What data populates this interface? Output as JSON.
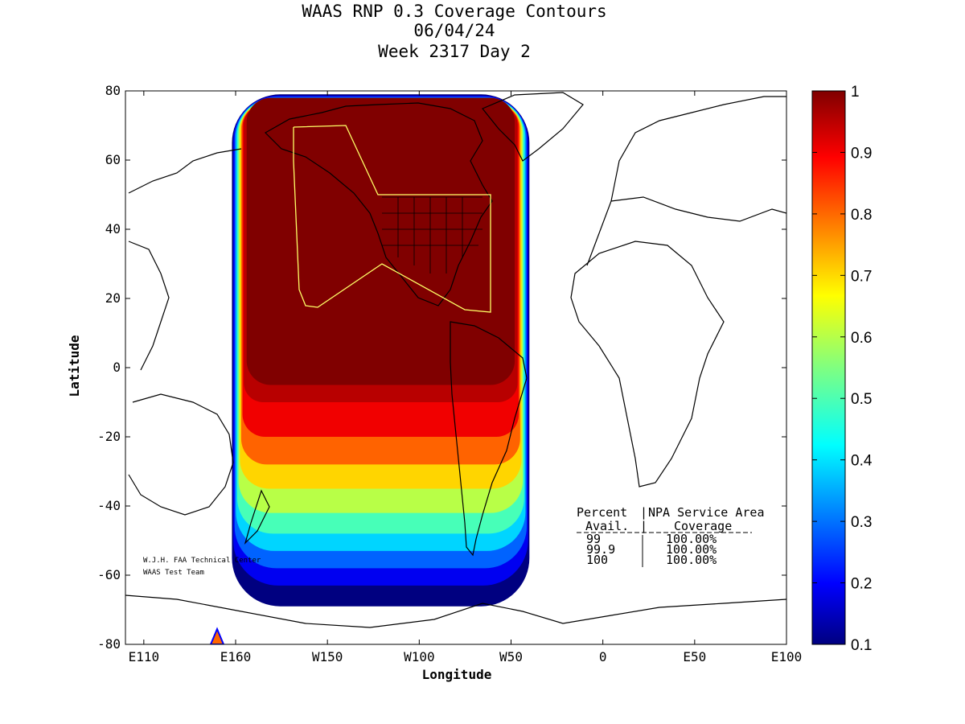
{
  "chart_data": {
    "type": "heatmap",
    "title_lines": [
      "WAAS RNP 0.3 Coverage Contours",
      "06/04/24",
      "Week 2317 Day 2"
    ],
    "xlabel": "Longitude",
    "ylabel": "Latitude",
    "x_ticks": [
      {
        "lon": -250,
        "label": "E110"
      },
      {
        "lon": -200,
        "label": "E160"
      },
      {
        "lon": -150,
        "label": "W150"
      },
      {
        "lon": -100,
        "label": "W100"
      },
      {
        "lon": -50,
        "label": "W50"
      },
      {
        "lon": 0,
        "label": "0"
      },
      {
        "lon": 50,
        "label": "E50"
      },
      {
        "lon": 100,
        "label": "E100"
      }
    ],
    "y_ticks": [
      80,
      60,
      40,
      20,
      0,
      -20,
      -40,
      -60,
      -80
    ],
    "xlim": [
      -260,
      100
    ],
    "ylim": [
      -80,
      80
    ],
    "colorbar": {
      "range": [
        0.1,
        1
      ],
      "ticks": [
        "1",
        "0.9",
        "0.8",
        "0.7",
        "0.6",
        "0.5",
        "0.4",
        "0.3",
        "0.2",
        "0.1"
      ]
    },
    "coverage_region": {
      "lon_range": [
        -202,
        -40
      ],
      "lat_range": [
        -70,
        79
      ],
      "full_coverage_value": 1.0,
      "min_value": 0.1,
      "southern_gradient_bands": [
        {
          "lat": -10,
          "value": 0.95
        },
        {
          "lat": -20,
          "value": 0.9
        },
        {
          "lat": -28,
          "value": 0.8
        },
        {
          "lat": -35,
          "value": 0.7
        },
        {
          "lat": -42,
          "value": 0.6
        },
        {
          "lat": -48,
          "value": 0.5
        },
        {
          "lat": -53,
          "value": 0.4
        },
        {
          "lat": -58,
          "value": 0.3
        },
        {
          "lat": -63,
          "value": 0.2
        },
        {
          "lat": -69,
          "value": 0.1
        }
      ]
    },
    "service_table": {
      "header_left": "Percent",
      "header_right": "NPA Service Area",
      "subheader_left": "Avail.",
      "subheader_right": "Coverage",
      "rows": [
        {
          "avail": "99",
          "coverage": "100.00%"
        },
        {
          "avail": "99.9",
          "coverage": "100.00%"
        },
        {
          "avail": "100",
          "coverage": "100.00%"
        }
      ]
    },
    "credit_lines": [
      "W.J.H. FAA Technical Center",
      "WAAS Test Team"
    ],
    "colors": {
      "service_area_outline": "#ffff66",
      "coastline": "#000000"
    }
  }
}
